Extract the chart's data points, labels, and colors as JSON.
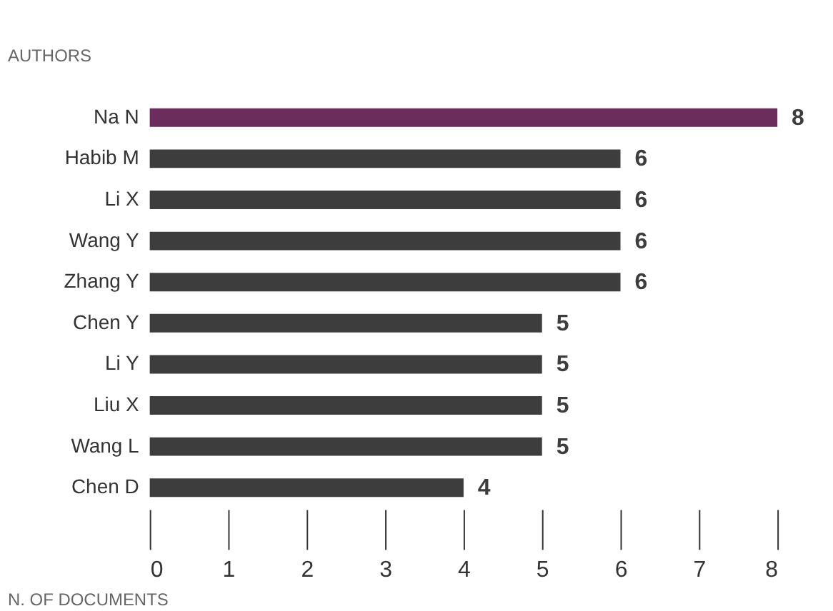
{
  "chart_data": {
    "type": "bar",
    "orientation": "horizontal",
    "ylabel": "AUTHORS",
    "xlabel": "N. OF DOCUMENTS",
    "categories": [
      "Na N",
      "Habib M",
      "Li X",
      "Wang Y",
      "Zhang Y",
      "Chen Y",
      "Li Y",
      "Liu X",
      "Wang L",
      "Chen D"
    ],
    "values": [
      8,
      6,
      6,
      6,
      6,
      5,
      5,
      5,
      5,
      4
    ],
    "colors": [
      "#6b2d5c",
      "#3d3d3d",
      "#3d3d3d",
      "#3d3d3d",
      "#3d3d3d",
      "#3d3d3d",
      "#3d3d3d",
      "#3d3d3d",
      "#3d3d3d",
      "#3d3d3d"
    ],
    "xlim": [
      0,
      8
    ],
    "xticks": [
      0,
      1,
      2,
      3,
      4,
      5,
      6,
      7,
      8
    ],
    "grid": false,
    "data_labels": true
  }
}
